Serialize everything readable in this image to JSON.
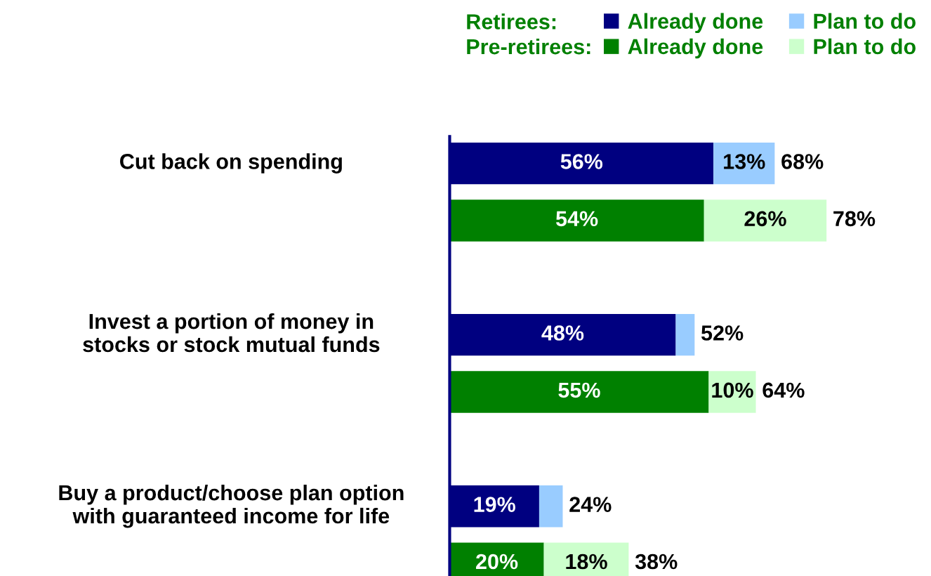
{
  "chart_data": {
    "type": "bar",
    "orientation": "horizontal",
    "stacked": true,
    "categories": [
      "Cut back on spending",
      null,
      null,
      "Invest a portion of money in\nstocks or stock mutual funds",
      null,
      null,
      "Buy a product/choose plan option\nwith guaranteed income for life",
      null
    ],
    "series": [
      {
        "name": "Already done",
        "color": "#000080",
        "values": [
          56,
          null,
          null,
          48,
          null,
          null,
          19,
          null
        ],
        "value_labels": [
          "56%",
          null,
          null,
          "48%",
          null,
          null,
          "19%",
          null
        ]
      },
      {
        "name": "Plan to do",
        "color": "#99ccff",
        "values": [
          13,
          null,
          null,
          4,
          null,
          null,
          5,
          null
        ],
        "value_labels": [
          "13%",
          null,
          null,
          null,
          null,
          null,
          null,
          null
        ]
      },
      {
        "name": "Already done",
        "color": "#008000",
        "values": [
          null,
          54,
          null,
          null,
          55,
          null,
          null,
          20
        ],
        "value_labels": [
          null,
          "54%",
          null,
          null,
          "55%",
          null,
          null,
          "20%"
        ]
      },
      {
        "name": "Plan to do",
        "color": "#ccffcc",
        "values": [
          null,
          26,
          null,
          null,
          10,
          null,
          null,
          18
        ],
        "value_labels": [
          null,
          "26%",
          null,
          null,
          "10%",
          null,
          null,
          "18%"
        ]
      }
    ],
    "totals": [
      "68%",
      "78%",
      null,
      "52%",
      "64%",
      null,
      "24%",
      "38%"
    ],
    "annotations": [
      "Retirees:",
      "Pre-retirees:"
    ],
    "legend": "top",
    "grid": false
  }
}
